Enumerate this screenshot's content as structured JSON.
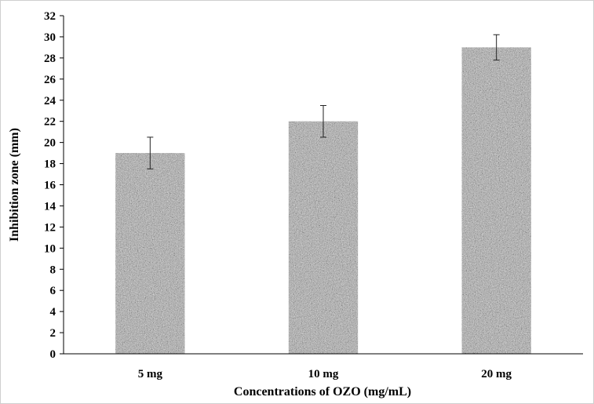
{
  "chart_data": {
    "type": "bar",
    "title": "",
    "categories": [
      "5 mg",
      "10 mg",
      "20 mg"
    ],
    "values": [
      19,
      22,
      29
    ],
    "error": [
      1.5,
      1.5,
      1.2
    ],
    "xlabel": "Concentrations of OZO (mg/mL)",
    "ylabel": "Inhibition zone (mm)",
    "ylim": [
      0,
      32
    ],
    "yticks": [
      "0",
      "2",
      "4",
      "6",
      "8",
      "10",
      "12",
      "14",
      "16",
      "18",
      "20",
      "22",
      "24",
      "26",
      "28",
      "30",
      "32"
    ],
    "grid": false,
    "legend": "none",
    "bar_color": "#a8a8a8"
  }
}
